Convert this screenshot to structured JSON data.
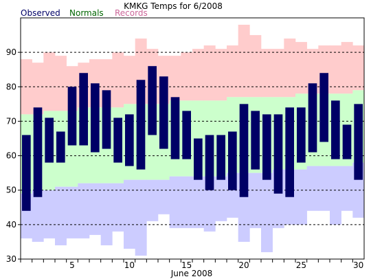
{
  "chart_data": {
    "type": "bar",
    "title": "KMKG Temps for 6/2008",
    "xlabel": "June 2008",
    "ylabel": "",
    "ylim": [
      30,
      100
    ],
    "xlim": [
      0.5,
      30.5
    ],
    "grid": true,
    "legend": {
      "placement": "top-left",
      "entries": [
        "Observed",
        "Normals",
        "Records"
      ]
    },
    "colors": {
      "observed": "#000066",
      "normals": "#ccffcc",
      "records_high": "#ffcccc",
      "records_low": "#ccccff",
      "legend_observed": "#000066",
      "legend_normals": "#006600",
      "legend_records": "#cc6699"
    },
    "x_ticks": [
      5,
      10,
      15,
      20,
      25,
      30
    ],
    "y_ticks": [
      30,
      40,
      50,
      60,
      70,
      80,
      90
    ],
    "days": [
      1,
      2,
      3,
      4,
      5,
      6,
      7,
      8,
      9,
      10,
      11,
      12,
      13,
      14,
      15,
      16,
      17,
      18,
      19,
      20,
      21,
      22,
      23,
      24,
      25,
      26,
      27,
      28,
      29,
      30
    ],
    "observed_high": [
      66,
      74,
      71,
      67,
      80,
      84,
      81,
      79,
      71,
      72,
      82,
      86,
      83,
      77,
      73,
      65,
      66,
      66,
      67,
      75,
      73,
      72,
      72,
      74,
      74,
      81,
      84,
      76,
      69,
      75
    ],
    "observed_low": [
      44,
      48,
      58,
      58,
      63,
      63,
      61,
      62,
      58,
      57,
      56,
      66,
      62,
      59,
      59,
      53,
      50,
      53,
      50,
      48,
      56,
      53,
      49,
      48,
      58,
      61,
      64,
      59,
      59,
      53
    ],
    "normal_high": [
      72,
      72,
      73,
      73,
      73,
      74,
      74,
      74,
      74,
      75,
      75,
      75,
      75,
      76,
      76,
      76,
      76,
      76,
      77,
      77,
      77,
      77,
      77,
      77,
      78,
      78,
      78,
      78,
      78,
      79
    ],
    "normal_low": [
      49,
      50,
      50,
      51,
      51,
      52,
      52,
      52,
      52,
      53,
      53,
      53,
      53,
      54,
      54,
      54,
      54,
      54,
      55,
      55,
      55,
      55,
      56,
      56,
      56,
      57,
      57,
      57,
      57,
      58
    ],
    "record_high": [
      88,
      87,
      90,
      89,
      86,
      87,
      88,
      88,
      90,
      89,
      94,
      91,
      89,
      89,
      90,
      91,
      92,
      91,
      92,
      98,
      95,
      91,
      91,
      94,
      93,
      91,
      92,
      92,
      93,
      92
    ],
    "record_low": [
      36,
      35,
      36,
      34,
      36,
      36,
      37,
      34,
      38,
      33,
      31,
      41,
      43,
      39,
      39,
      39,
      38,
      41,
      42,
      35,
      39,
      32,
      39,
      40,
      40,
      44,
      44,
      40,
      44,
      42
    ]
  }
}
